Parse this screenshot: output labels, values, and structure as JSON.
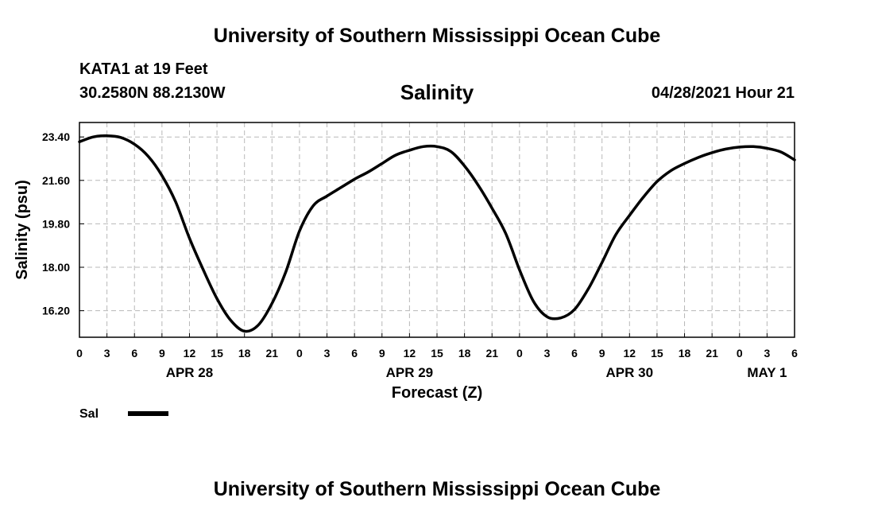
{
  "header": {
    "top_title": "University of Southern Mississippi Ocean Cube",
    "station": "KATA1 at 19 Feet",
    "coords": "30.2580N  88.2130W",
    "plot_title": "Salinity",
    "run_time": "04/28/2021 Hour 21"
  },
  "footer": {
    "bottom_title": "University of Southern Mississippi Ocean Cube"
  },
  "chart_data": {
    "type": "line",
    "title": "Salinity",
    "xlabel": "Forecast (Z)",
    "ylabel": "Salinity (psu)",
    "x_unit": "hours from APR 28 00Z",
    "xlim": [
      0,
      78
    ],
    "ylim": [
      15.1,
      24.0
    ],
    "grid": true,
    "yticks": [
      16.2,
      18.0,
      19.8,
      21.6,
      23.4
    ],
    "ytick_labels": [
      "16.20",
      "18.00",
      "19.80",
      "21.60",
      "23.40"
    ],
    "xtick_labels": [
      "0",
      "3",
      "6",
      "9",
      "12",
      "15",
      "18",
      "21",
      "0",
      "3",
      "6",
      "9",
      "12",
      "15",
      "18",
      "21",
      "0",
      "3",
      "6",
      "9",
      "12",
      "15",
      "18",
      "21",
      "0",
      "3",
      "6"
    ],
    "date_labels": [
      {
        "label": "APR 28",
        "hour": 12
      },
      {
        "label": "APR 29",
        "hour": 36
      },
      {
        "label": "APR 30",
        "hour": 60
      },
      {
        "label": "MAY 1",
        "hour": 75
      }
    ],
    "legend": {
      "placement": "bottom-left",
      "entries": [
        "Sal"
      ]
    },
    "series": [
      {
        "name": "Sal",
        "color": "#000000",
        "x": [
          0,
          1.5,
          3,
          4.5,
          6,
          7.5,
          9,
          10.5,
          12,
          13.5,
          15,
          16.5,
          18,
          19.5,
          21,
          22.5,
          24,
          25.5,
          27,
          28.5,
          30,
          31.5,
          33,
          34.5,
          36,
          37.5,
          39,
          40.5,
          42,
          43.5,
          45,
          46.5,
          48,
          49.5,
          51,
          52.5,
          54,
          55.5,
          57,
          58.5,
          60,
          61.5,
          63,
          64.5,
          66,
          67.5,
          69,
          70.5,
          72,
          73.5,
          75,
          76.5,
          78
        ],
        "y": [
          23.2,
          23.4,
          23.45,
          23.38,
          23.1,
          22.6,
          21.8,
          20.7,
          19.2,
          17.9,
          16.7,
          15.8,
          15.35,
          15.6,
          16.5,
          17.8,
          19.5,
          20.55,
          20.95,
          21.3,
          21.65,
          21.95,
          22.3,
          22.65,
          22.85,
          23.0,
          23.0,
          22.8,
          22.2,
          21.4,
          20.45,
          19.4,
          17.9,
          16.6,
          15.95,
          15.9,
          16.25,
          17.1,
          18.2,
          19.35,
          20.15,
          20.9,
          21.55,
          22.0,
          22.3,
          22.55,
          22.75,
          22.9,
          22.98,
          23.0,
          22.93,
          22.78,
          22.45
        ]
      }
    ]
  }
}
